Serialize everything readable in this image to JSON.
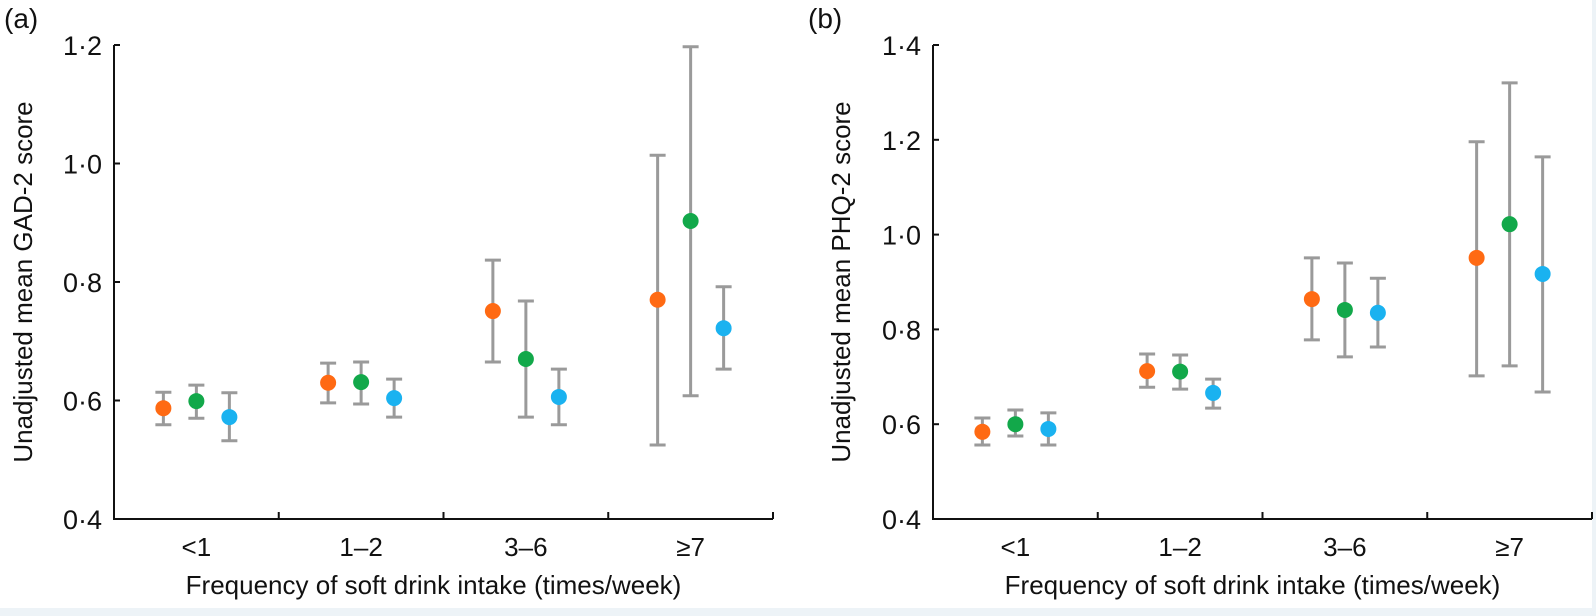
{
  "chart_data": [
    {
      "type": "scatter",
      "panel_label": "(a)",
      "title": "",
      "xlabel": "Frequency of soft drink intake (times/week)",
      "ylabel": "Unadjusted mean GAD-2 score",
      "ylim": [
        0.4,
        1.2
      ],
      "yticks": [
        "0·4",
        "0·6",
        "0·8",
        "1·0",
        "1·2"
      ],
      "ytick_values": [
        0.4,
        0.6,
        0.8,
        1.0,
        1.2
      ],
      "categories": [
        "<1",
        "1–2",
        "3–6",
        "≥7"
      ],
      "grid": false,
      "error_bars": true,
      "series": [
        {
          "color": "#ff6a13",
          "values": [
            0.587,
            0.63,
            0.751,
            0.77
          ],
          "lower": [
            0.559,
            0.596,
            0.665,
            0.525
          ],
          "upper": [
            0.614,
            0.663,
            0.837,
            1.014
          ]
        },
        {
          "color": "#12a84a",
          "values": [
            0.599,
            0.631,
            0.67,
            0.903
          ],
          "lower": [
            0.57,
            0.594,
            0.572,
            0.608
          ],
          "upper": [
            0.626,
            0.665,
            0.768,
            1.197
          ]
        },
        {
          "color": "#1ab2f0",
          "values": [
            0.572,
            0.604,
            0.606,
            0.722
          ],
          "lower": [
            0.532,
            0.572,
            0.559,
            0.653
          ],
          "upper": [
            0.613,
            0.636,
            0.653,
            0.792
          ]
        }
      ]
    },
    {
      "type": "scatter",
      "panel_label": "(b)",
      "title": "",
      "xlabel": "Frequency of soft drink intake (times/week)",
      "ylabel": "Unadjusted mean PHQ-2 score",
      "ylim": [
        0.4,
        1.4
      ],
      "yticks": [
        "0·4",
        "0·6",
        "0·8",
        "1·0",
        "1·2",
        "1·4"
      ],
      "ytick_values": [
        0.4,
        0.6,
        0.8,
        1.0,
        1.2,
        1.4
      ],
      "categories": [
        "<1",
        "1–2",
        "3–6",
        "≥7"
      ],
      "grid": false,
      "error_bars": true,
      "series": [
        {
          "color": "#ff6a13",
          "values": [
            0.584,
            0.712,
            0.864,
            0.951
          ],
          "lower": [
            0.556,
            0.678,
            0.778,
            0.702
          ],
          "upper": [
            0.613,
            0.748,
            0.951,
            1.196
          ]
        },
        {
          "color": "#12a84a",
          "values": [
            0.6,
            0.711,
            0.841,
            1.022
          ],
          "lower": [
            0.575,
            0.674,
            0.742,
            0.723
          ],
          "upper": [
            0.63,
            0.746,
            0.94,
            1.32
          ]
        },
        {
          "color": "#1ab2f0",
          "values": [
            0.59,
            0.666,
            0.835,
            0.917
          ],
          "lower": [
            0.556,
            0.634,
            0.763,
            0.668
          ],
          "upper": [
            0.624,
            0.695,
            0.908,
            1.164
          ]
        }
      ]
    }
  ]
}
